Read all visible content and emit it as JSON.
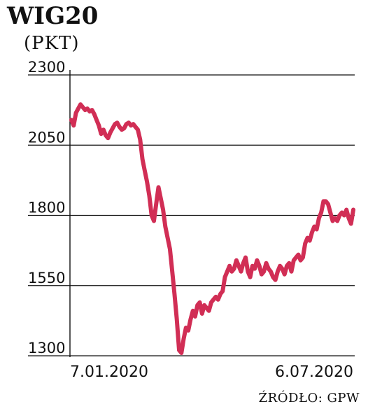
{
  "chart_data": {
    "type": "line",
    "title": "WIG20",
    "subtitle": "(PKT)",
    "ylim": [
      1300,
      2300
    ],
    "yticks": [
      {
        "value": 2300,
        "label": "2300"
      },
      {
        "value": 2050,
        "label": "2050"
      },
      {
        "value": 1800,
        "label": "1800"
      },
      {
        "value": 1550,
        "label": "1550"
      },
      {
        "value": 1300,
        "label": "1300"
      }
    ],
    "x_start_label": "7.01.2020",
    "x_end_label": "6.07.2020",
    "grid": true,
    "series": [
      {
        "color": "#d12e55",
        "values": [
          2140,
          2120,
          2165,
          2180,
          2195,
          2185,
          2175,
          2180,
          2170,
          2175,
          2160,
          2140,
          2120,
          2090,
          2105,
          2085,
          2075,
          2095,
          2110,
          2125,
          2130,
          2115,
          2105,
          2110,
          2125,
          2130,
          2120,
          2125,
          2115,
          2105,
          2070,
          2000,
          1960,
          1920,
          1870,
          1800,
          1780,
          1840,
          1900,
          1860,
          1820,
          1760,
          1720,
          1680,
          1600,
          1520,
          1430,
          1320,
          1310,
          1360,
          1400,
          1390,
          1430,
          1460,
          1440,
          1480,
          1490,
          1450,
          1480,
          1470,
          1460,
          1490,
          1500,
          1510,
          1500,
          1520,
          1530,
          1580,
          1600,
          1620,
          1600,
          1610,
          1640,
          1620,
          1600,
          1630,
          1650,
          1600,
          1580,
          1620,
          1610,
          1640,
          1620,
          1590,
          1600,
          1630,
          1610,
          1600,
          1580,
          1570,
          1600,
          1620,
          1610,
          1590,
          1620,
          1630,
          1600,
          1640,
          1650,
          1660,
          1640,
          1650,
          1700,
          1720,
          1710,
          1740,
          1760,
          1750,
          1790,
          1810,
          1850,
          1850,
          1840,
          1810,
          1780,
          1790,
          1780,
          1800,
          1810,
          1800,
          1820,
          1790,
          1770,
          1820
        ]
      }
    ]
  },
  "source": "ŹRÓDŁO: GPW"
}
